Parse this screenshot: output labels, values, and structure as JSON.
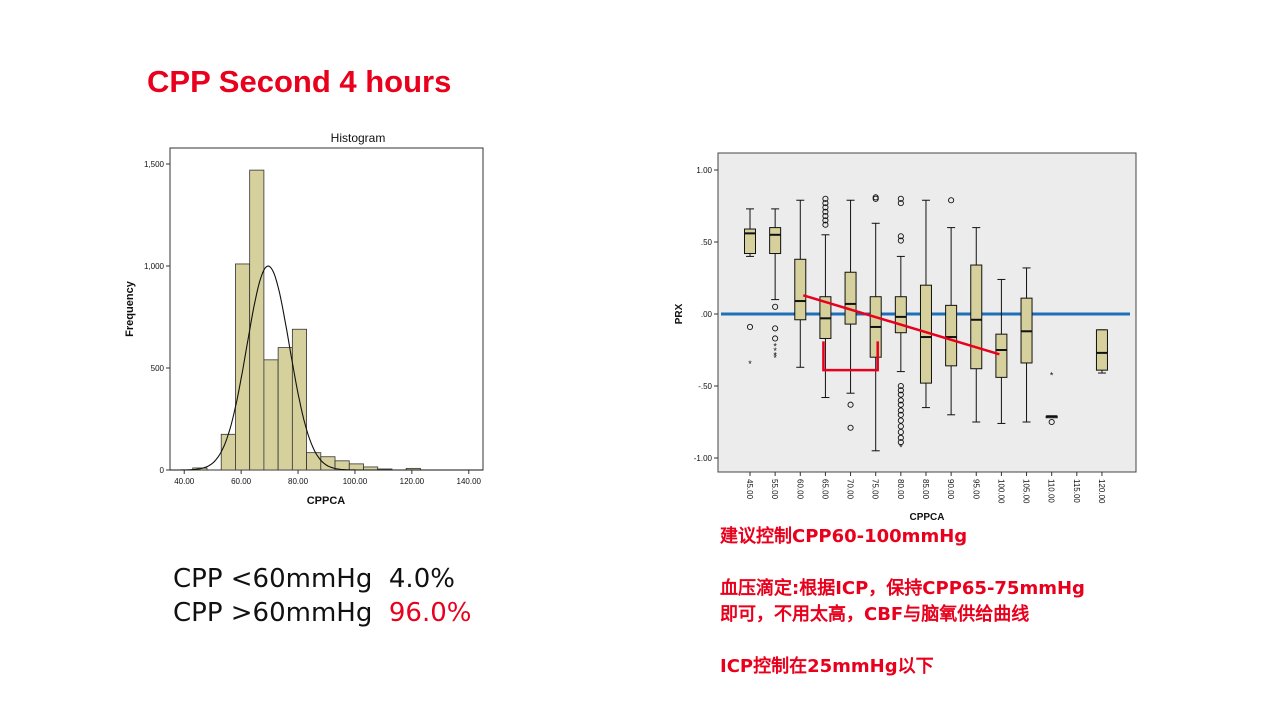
{
  "slide": {
    "title": "CPP Second 4 hours"
  },
  "stats": {
    "rows": [
      {
        "label": "CPP <60mmHg",
        "value": "4.0%",
        "value_color": "#111111"
      },
      {
        "label": "CPP >60mmHg",
        "value": "96.0%",
        "value_color": "#e8001c"
      }
    ]
  },
  "notes": {
    "lines": [
      "建议控制CPP60-100mmHg",
      "",
      "血压滴定:根据ICP，保持CPP65-75mmHg",
      "即可，不用太高，CBF与脑氧供给曲线",
      "",
      "ICP控制在25mmHg以下"
    ]
  },
  "colors": {
    "accent_red": "#e8001c",
    "bar_fill": "#d6d19c",
    "reference_line": "#1f6fb8"
  },
  "chart_data": [
    {
      "type": "bar",
      "title": "Histogram",
      "xlabel": "CPPCA",
      "ylabel": "Frequency",
      "xlim": [
        35,
        145
      ],
      "ylim": [
        0,
        1500
      ],
      "xticks": [
        "40.00",
        "60.00",
        "80.00",
        "100.00",
        "120.00",
        "140.00"
      ],
      "yticks": [
        "0",
        "500",
        "1,000",
        "1,500"
      ],
      "bin_width": 5,
      "bins": [
        {
          "start": 43,
          "value": 10
        },
        {
          "start": 53,
          "value": 175
        },
        {
          "start": 58,
          "value": 1010
        },
        {
          "start": 63,
          "value": 1470
        },
        {
          "start": 68,
          "value": 540
        },
        {
          "start": 73,
          "value": 600
        },
        {
          "start": 78,
          "value": 690
        },
        {
          "start": 83,
          "value": 85
        },
        {
          "start": 88,
          "value": 65
        },
        {
          "start": 93,
          "value": 45
        },
        {
          "start": 98,
          "value": 30
        },
        {
          "start": 103,
          "value": 15
        },
        {
          "start": 108,
          "value": 5
        },
        {
          "start": 118,
          "value": 8
        }
      ],
      "normal_curve": {
        "mean": 69.5,
        "sd": 7.5,
        "peak": 1000
      },
      "grid": false
    },
    {
      "type": "box",
      "xlabel": "CPPCA",
      "ylabel": "PRX",
      "ylim": [
        -1.05,
        1.05
      ],
      "yticks": [
        "1.00",
        ".50",
        ".00",
        "-.50",
        "-1.00"
      ],
      "categories": [
        "45.00",
        "55.00",
        "60.00",
        "65.00",
        "70.00",
        "75.00",
        "80.00",
        "85.00",
        "90.00",
        "95.00",
        "100.00",
        "105.00",
        "110.00",
        "115.00",
        "120.00"
      ],
      "boxes": [
        {
          "category": "45.00",
          "whisker_low": 0.4,
          "q1": 0.42,
          "median": 0.56,
          "q3": 0.59,
          "whisker_high": 0.73,
          "outliers": [
            -0.09
          ],
          "extremes": [
            -0.34
          ]
        },
        {
          "category": "55.00",
          "whisker_low": 0.1,
          "q1": 0.42,
          "median": 0.55,
          "q3": 0.6,
          "whisker_high": 0.73,
          "outliers": [
            0.05,
            -0.1,
            -0.17
          ],
          "extremes": [
            -0.22,
            -0.25,
            -0.28,
            -0.3
          ]
        },
        {
          "category": "60.00",
          "whisker_low": -0.37,
          "q1": -0.04,
          "median": 0.09,
          "q3": 0.38,
          "whisker_high": 0.79,
          "outliers": [],
          "extremes": []
        },
        {
          "category": "65.00",
          "whisker_low": -0.58,
          "q1": -0.17,
          "median": -0.03,
          "q3": 0.12,
          "whisker_high": 0.55,
          "outliers": [
            0.8,
            0.77,
            0.74,
            0.71,
            0.68,
            0.65,
            0.62
          ],
          "extremes": []
        },
        {
          "category": "70.00",
          "whisker_low": -0.55,
          "q1": -0.07,
          "median": 0.07,
          "q3": 0.29,
          "whisker_high": 0.79,
          "outliers": [
            -0.63,
            -0.79
          ],
          "extremes": []
        },
        {
          "category": "75.00",
          "whisker_low": -0.95,
          "q1": -0.3,
          "median": -0.09,
          "q3": 0.12,
          "whisker_high": 0.63,
          "outliers": [
            0.81,
            0.8
          ],
          "extremes": []
        },
        {
          "category": "80.00",
          "whisker_low": -0.4,
          "q1": -0.13,
          "median": -0.02,
          "q3": 0.12,
          "whisker_high": 0.4,
          "outliers": [
            0.8,
            0.77,
            0.54,
            0.51,
            -0.5,
            -0.53,
            -0.56,
            -0.6,
            -0.63,
            -0.67,
            -0.7,
            -0.74,
            -0.78,
            -0.82,
            -0.86,
            -0.89
          ],
          "extremes": [
            -0.92
          ]
        },
        {
          "category": "85.00",
          "whisker_low": -0.65,
          "q1": -0.48,
          "median": -0.16,
          "q3": 0.2,
          "whisker_high": 0.79,
          "outliers": [],
          "extremes": []
        },
        {
          "category": "90.00",
          "whisker_low": -0.7,
          "q1": -0.36,
          "median": -0.16,
          "q3": 0.06,
          "whisker_high": 0.6,
          "outliers": [
            0.79
          ],
          "extremes": []
        },
        {
          "category": "95.00",
          "whisker_low": -0.75,
          "q1": -0.38,
          "median": -0.04,
          "q3": 0.34,
          "whisker_high": 0.6,
          "outliers": [],
          "extremes": []
        },
        {
          "category": "100.00",
          "whisker_low": -0.76,
          "q1": -0.44,
          "median": -0.25,
          "q3": -0.14,
          "whisker_high": 0.24,
          "outliers": [],
          "extremes": []
        },
        {
          "category": "105.00",
          "whisker_low": -0.75,
          "q1": -0.34,
          "median": -0.12,
          "q3": 0.11,
          "whisker_high": 0.32,
          "outliers": [],
          "extremes": []
        },
        {
          "category": "110.00",
          "whisker_low": -0.71,
          "q1": -0.71,
          "median": -0.71,
          "q3": -0.71,
          "whisker_high": -0.71,
          "outliers": [
            -0.75
          ],
          "extremes": [
            -0.42
          ]
        },
        {
          "category": "120.00",
          "whisker_low": -0.41,
          "q1": -0.39,
          "median": -0.27,
          "q3": -0.11,
          "whisker_high": -0.11,
          "outliers": [],
          "extremes": []
        }
      ],
      "reference_line": {
        "y": 0.0,
        "color": "#1f6fb8"
      },
      "annotations": [
        {
          "type": "trend_line",
          "color": "#e8001c",
          "from": {
            "category": "60.00",
            "y": 0.13
          },
          "to": {
            "category": "100.00",
            "y": -0.28
          }
        },
        {
          "type": "bracket",
          "color": "#e8001c",
          "from_category": "65.00",
          "to_category": "75.00",
          "y_top": -0.19,
          "y_bottom": -0.39
        }
      ],
      "grid": false
    }
  ]
}
